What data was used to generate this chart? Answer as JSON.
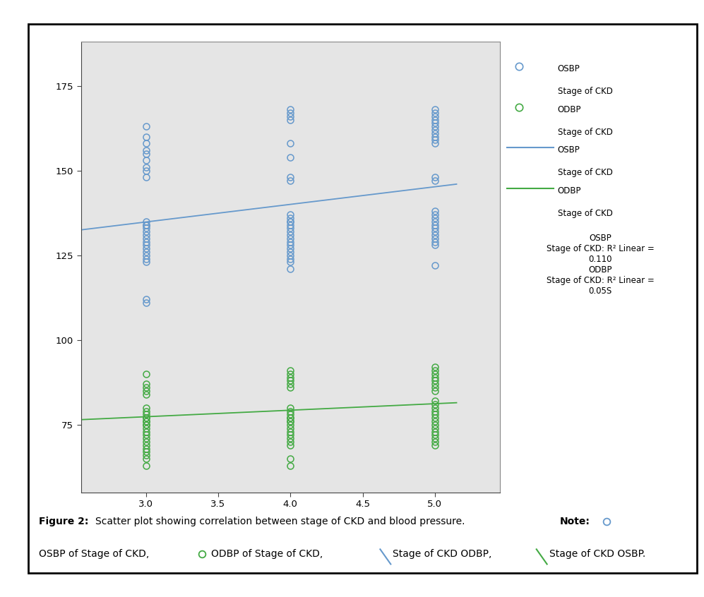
{
  "osbp_stage3": [
    163,
    160,
    158,
    156,
    155,
    153,
    151,
    150,
    135,
    134,
    134,
    133,
    132,
    131,
    130,
    129,
    128,
    127,
    126,
    125,
    124,
    123,
    148,
    112,
    111
  ],
  "osbp_stage4": [
    168,
    167,
    166,
    165,
    158,
    154,
    148,
    147,
    137,
    136,
    135,
    135,
    134,
    133,
    132,
    131,
    130,
    129,
    128,
    127,
    126,
    125,
    124,
    123,
    121
  ],
  "osbp_stage5": [
    168,
    167,
    166,
    165,
    164,
    163,
    162,
    161,
    160,
    159,
    158,
    148,
    147,
    138,
    137,
    136,
    135,
    134,
    133,
    132,
    131,
    130,
    129,
    128,
    122
  ],
  "odbp_stage3": [
    90,
    87,
    86,
    85,
    84,
    80,
    79,
    78,
    77,
    77,
    76,
    76,
    75,
    75,
    74,
    73,
    72,
    71,
    70,
    69,
    68,
    67,
    66,
    65,
    63
  ],
  "odbp_stage4": [
    91,
    90,
    89,
    88,
    87,
    86,
    80,
    79,
    78,
    77,
    77,
    76,
    76,
    75,
    74,
    73,
    72,
    71,
    70,
    69,
    65,
    63
  ],
  "odbp_stage5": [
    92,
    91,
    90,
    89,
    88,
    87,
    86,
    85,
    82,
    81,
    80,
    79,
    78,
    77,
    76,
    75,
    74,
    73,
    72,
    71,
    70,
    69
  ],
  "blue_line_x": [
    2.55,
    5.15
  ],
  "blue_line_y": [
    132.5,
    146.0
  ],
  "green_line_x": [
    2.55,
    5.15
  ],
  "green_line_y": [
    76.5,
    81.5
  ],
  "plot_bg": "#e5e5e5",
  "fig_bg": "#ffffff",
  "blue_color": "#6699cc",
  "green_color": "#44aa44",
  "xlim": [
    2.55,
    5.45
  ],
  "ylim": [
    55,
    188
  ],
  "xticks": [
    3.0,
    3.5,
    4.0,
    4.5,
    5.0
  ],
  "yticks": [
    75,
    100,
    125,
    150,
    175
  ],
  "marker_size": 6.5,
  "marker_lw": 1.1
}
